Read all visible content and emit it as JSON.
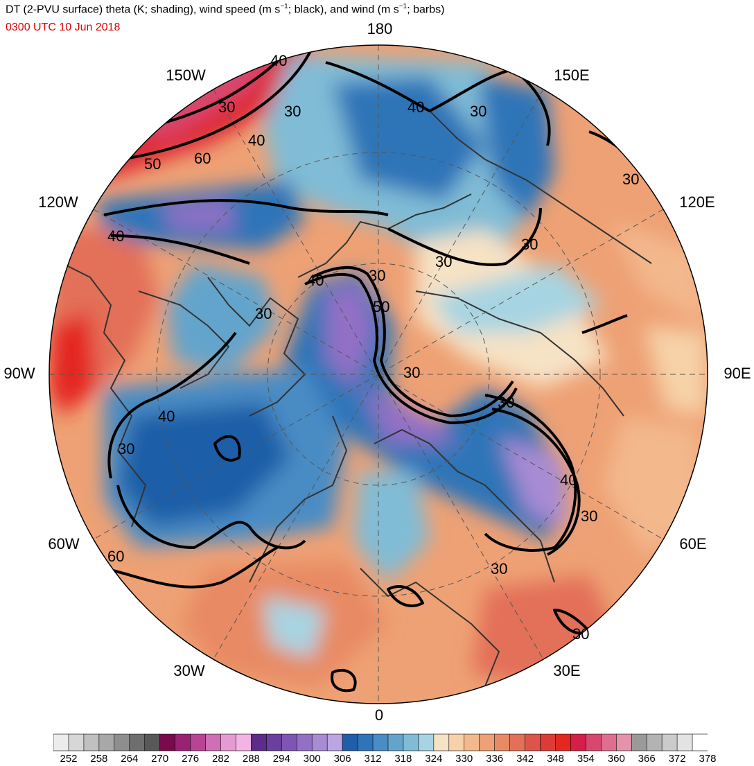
{
  "title": {
    "main_text": "DT (2-PVU surface) theta (K; shading), wind speed (m s",
    "sup1": "−1",
    "mid_text": "; black), and wind (m s",
    "sup2": "−1",
    "tail_text": "; barbs)"
  },
  "valid_time": "0300 UTC 10 Jun 2018",
  "longitude_labels": {
    "top": "180",
    "top_left": "150W",
    "top_right": "150E",
    "upper_left": "120W",
    "upper_right": "120E",
    "left": "90W",
    "right": "90E",
    "lower_left": "60W",
    "lower_right": "60E",
    "bottom_left": "30W",
    "bottom_right": "30E",
    "bottom": "0"
  },
  "contour_labels": [
    "40",
    "30",
    "60",
    "50",
    "30",
    "40",
    "30",
    "30",
    "40",
    "30",
    "40",
    "30",
    "50",
    "30",
    "30",
    "40",
    "30",
    "40",
    "30",
    "60",
    "30",
    "30",
    "30",
    "40",
    "30"
  ],
  "colorbar": {
    "ticks": [
      "252",
      "258",
      "264",
      "270",
      "276",
      "282",
      "288",
      "294",
      "300",
      "306",
      "312",
      "318",
      "324",
      "330",
      "336",
      "342",
      "348",
      "354",
      "360",
      "366",
      "372",
      "378"
    ],
    "colors": [
      "#ececec",
      "#d7d7d7",
      "#c0c0c0",
      "#a8a8a8",
      "#8e8e8e",
      "#6e6e6e",
      "#585858",
      "#7a0a4c",
      "#9a2272",
      "#b84594",
      "#cf6fb4",
      "#e69ad2",
      "#f4b3e5",
      "#5c2c8a",
      "#6b3fa0",
      "#7f55b3",
      "#9370c6",
      "#a78bd4",
      "#bba5e2",
      "#1f5ea8",
      "#2f74b8",
      "#4a8cc4",
      "#64a4cc",
      "#80bcd6",
      "#a7d4e2",
      "#f6e2c4",
      "#f7d2a8",
      "#f3b88c",
      "#eea174",
      "#e88a64",
      "#e37058",
      "#dd5448",
      "#db3c36",
      "#e42820",
      "#d61e4a",
      "#d8476e",
      "#de6f90",
      "#e493ac",
      "#9a9a9a",
      "#b3b3b3",
      "#cbcbcb",
      "#e3e3e3",
      "#ffffff"
    ]
  }
}
